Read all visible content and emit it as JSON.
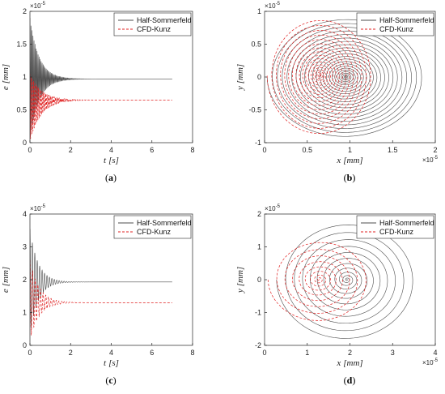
{
  "colors": {
    "half_sommerfeld": "#4d4d4d",
    "cfd_kunz": "#e02020",
    "axis": "#262626"
  },
  "chart_data": [
    {
      "panel": "a",
      "caption_letter": "a",
      "type": "line",
      "xlabel_var": "t",
      "xlabel_unit": "[s]",
      "ylabel_var": "e",
      "ylabel_unit": "[mm]",
      "xlim": [
        0,
        8
      ],
      "ylim": [
        0,
        2
      ],
      "xticks": [
        "0",
        "2",
        "4",
        "6",
        "8"
      ],
      "yticks": [
        "0",
        "0.5",
        "1",
        "1.5",
        "2"
      ],
      "y_multiplier": "×10",
      "y_multiplier_exp": "-5",
      "x_multiplier": "",
      "x_multiplier_exp": "",
      "legend_position": "top-right",
      "series": [
        {
          "name": "Half-Sommerfeld",
          "style": "solid",
          "color": "#4d4d4d",
          "start": 1.9,
          "final": 0.97,
          "min_start": 0.05,
          "decay_tau": 0.45,
          "period": 0.05,
          "t_end": 7.0
        },
        {
          "name": "CFD-Kunz",
          "style": "dashed",
          "color": "#e02020",
          "start": 1.05,
          "final": 0.65,
          "min_start": 0.02,
          "decay_tau": 0.55,
          "period": 0.06,
          "t_end": 7.0
        }
      ]
    },
    {
      "panel": "b",
      "caption_letter": "b",
      "type": "line",
      "xlabel_var": "x",
      "xlabel_unit": "[mm]",
      "ylabel_var": "y",
      "ylabel_unit": "[mm]",
      "xlim": [
        0,
        2
      ],
      "ylim": [
        -1,
        1
      ],
      "xticks": [
        "0",
        "0.5",
        "1",
        "1.5",
        "2"
      ],
      "yticks": [
        "-1",
        "-0.5",
        "0",
        "0.5",
        "1"
      ],
      "y_multiplier": "×10",
      "y_multiplier_exp": "-5",
      "x_multiplier": "×10",
      "x_multiplier_exp": "-5",
      "legend_position": "top-right",
      "series": [
        {
          "name": "Half-Sommerfeld",
          "style": "solid",
          "color": "#4d4d4d",
          "center": [
            0.95,
            0.0
          ],
          "rx_max": 0.92,
          "ry_max": 0.92,
          "turns": 24
        },
        {
          "name": "CFD-Kunz",
          "style": "dashed",
          "color": "#e02020",
          "center": [
            0.65,
            0.02
          ],
          "rx_max": 0.62,
          "ry_max": 0.9,
          "turns": 18
        }
      ]
    },
    {
      "panel": "c",
      "caption_letter": "c",
      "type": "line",
      "xlabel_var": "t",
      "xlabel_unit": "[s]",
      "ylabel_var": "e",
      "ylabel_unit": "[mm]",
      "xlim": [
        0,
        8
      ],
      "ylim": [
        0,
        4
      ],
      "xticks": [
        "0",
        "2",
        "4",
        "6",
        "8"
      ],
      "yticks": [
        "0",
        "1",
        "2",
        "3",
        "4"
      ],
      "y_multiplier": "×10",
      "y_multiplier_exp": "-5",
      "x_multiplier": "",
      "x_multiplier_exp": "",
      "legend_position": "top-right",
      "series": [
        {
          "name": "Half-Sommerfeld",
          "style": "solid",
          "color": "#4d4d4d",
          "start": 3.55,
          "final": 1.93,
          "min_start": 0.3,
          "decay_tau": 0.4,
          "period": 0.12,
          "t_end": 7.0
        },
        {
          "name": "CFD-Kunz",
          "style": "dashed",
          "color": "#e02020",
          "start": 2.6,
          "final": 1.3,
          "min_start": 0.15,
          "decay_tau": 0.45,
          "period": 0.13,
          "t_end": 7.0
        }
      ]
    },
    {
      "panel": "d",
      "caption_letter": "d",
      "type": "line",
      "xlabel_var": "x",
      "xlabel_unit": "[mm]",
      "ylabel_var": "y",
      "ylabel_unit": "[mm]",
      "xlim": [
        0,
        4
      ],
      "ylim": [
        -2,
        2
      ],
      "xticks": [
        "0",
        "1",
        "2",
        "3",
        "4"
      ],
      "yticks": [
        "-2",
        "-1",
        "0",
        "1",
        "2"
      ],
      "y_multiplier": "×10",
      "y_multiplier_exp": "-5",
      "x_multiplier": "×10",
      "x_multiplier_exp": "-5",
      "legend_position": "top-right",
      "series": [
        {
          "name": "Half-Sommerfeld",
          "style": "solid",
          "color": "#4d4d4d",
          "center": [
            1.93,
            0.0
          ],
          "rx_max": 1.65,
          "ry_max": 1.85,
          "turns": 12
        },
        {
          "name": "CFD-Kunz",
          "style": "dashed",
          "color": "#e02020",
          "center": [
            1.28,
            0.0
          ],
          "rx_max": 1.2,
          "ry_max": 1.3,
          "turns": 9
        }
      ]
    }
  ]
}
